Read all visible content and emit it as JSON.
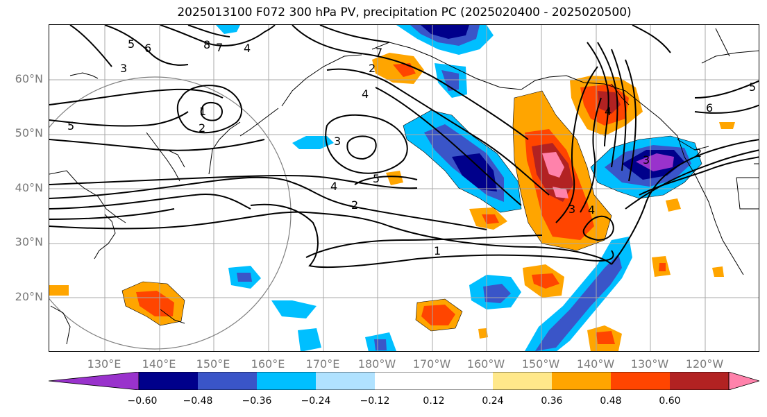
{
  "title": "2025013100 F072 300 hPa PV, precipitation PC (2025020400 - 2025020500)",
  "map": {
    "latitude_labels": [
      "60°N",
      "50°N",
      "40°N",
      "30°N",
      "20°N"
    ],
    "longitude_labels": [
      "130°E",
      "140°E",
      "150°E",
      "160°E",
      "170°E",
      "180°W",
      "170°W",
      "160°W",
      "150°W",
      "140°W",
      "130°W",
      "120°W"
    ],
    "pv_contour_labels": [
      "5",
      "6",
      "8",
      "7",
      "4",
      "3",
      "1",
      "2",
      "5",
      "2",
      "7",
      "4",
      "3",
      "5",
      "4",
      "2",
      "1",
      "3",
      "4",
      "6",
      "4",
      "3",
      "2",
      "5"
    ]
  },
  "colorbar": {
    "tick_labels": [
      "−0.60",
      "−0.48",
      "−0.36",
      "−0.24",
      "−0.12",
      "0.12",
      "0.24",
      "0.36",
      "0.48",
      "0.60"
    ],
    "colors": [
      "#9932cc",
      "#00008b",
      "#3a55c8",
      "#00bfff",
      "#b0e2ff",
      "#ffffff",
      "#ffe88a",
      "#ffa500",
      "#ff4500",
      "#b22222",
      "#ff82ab"
    ]
  }
}
